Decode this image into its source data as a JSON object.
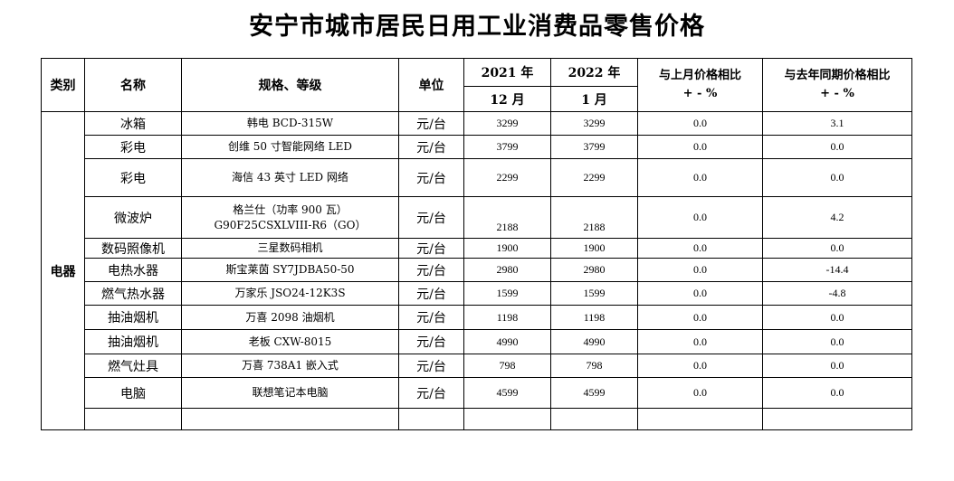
{
  "title": "安宁市城市居民日用工业消费品零售价格",
  "headers": {
    "category": "类别",
    "name": "名称",
    "spec": "规格、等级",
    "unit": "单位",
    "year1": "2021 年",
    "month1": "12 月",
    "year2": "2022 年",
    "month2": "1 月",
    "mom_line1": "与上月价格相比",
    "mom_line2": "+ - %",
    "yoy_line1": "与去年同期价格相比",
    "yoy_line2": "+ - %"
  },
  "category": "电器",
  "rows": [
    {
      "name": "冰箱",
      "spec": "韩电 BCD-315W",
      "unit": "元/台",
      "p1": "3299",
      "p2": "3299",
      "mom": "0.0",
      "yoy": "3.1"
    },
    {
      "name": "彩电",
      "spec": "创维 50 寸智能网络 LED",
      "unit": "元/台",
      "p1": "3799",
      "p2": "3799",
      "mom": "0.0",
      "yoy": "0.0"
    },
    {
      "name": "彩电",
      "spec": "海信 43 英寸 LED 网络",
      "unit": "元/台",
      "p1": "2299",
      "p2": "2299",
      "mom": "0.0",
      "yoy": "0.0"
    },
    {
      "name": "微波炉",
      "spec": "格兰仕（功率 900 瓦）",
      "spec2": "G90F25CSXLVIII-R6（GO）",
      "unit": "元/台",
      "p1": "2188",
      "p2": "2188",
      "mom": "0.0",
      "yoy": "4.2"
    },
    {
      "name": "数码照像机",
      "spec": "三星数码相机",
      "unit": "元/台",
      "p1": "1900",
      "p2": "1900",
      "mom": "0.0",
      "yoy": "0.0"
    },
    {
      "name": "电热水器",
      "spec": "斯宝莱茵 SY7JDBA50-50",
      "unit": "元/台",
      "p1": "2980",
      "p2": "2980",
      "mom": "0.0",
      "yoy": "-14.4"
    },
    {
      "name": "燃气热水器",
      "spec": "万家乐 JSO24-12K3S",
      "unit": "元/台",
      "p1": "1599",
      "p2": "1599",
      "mom": "0.0",
      "yoy": "-4.8"
    },
    {
      "name": "抽油烟机",
      "spec": "万喜 2098 油烟机",
      "unit": "元/台",
      "p1": "1198",
      "p2": "1198",
      "mom": "0.0",
      "yoy": "0.0"
    },
    {
      "name": "抽油烟机",
      "spec": "老板 CXW-8015",
      "unit": "元/台",
      "p1": "4990",
      "p2": "4990",
      "mom": "0.0",
      "yoy": "0.0"
    },
    {
      "name": "燃气灶具",
      "spec": "万喜 738A1 嵌入式",
      "unit": "元/台",
      "p1": "798",
      "p2": "798",
      "mom": "0.0",
      "yoy": "0.0"
    },
    {
      "name": "电脑",
      "spec": "联想笔记本电脑",
      "unit": "元/台",
      "p1": "4599",
      "p2": "4599",
      "mom": "0.0",
      "yoy": "0.0"
    }
  ]
}
